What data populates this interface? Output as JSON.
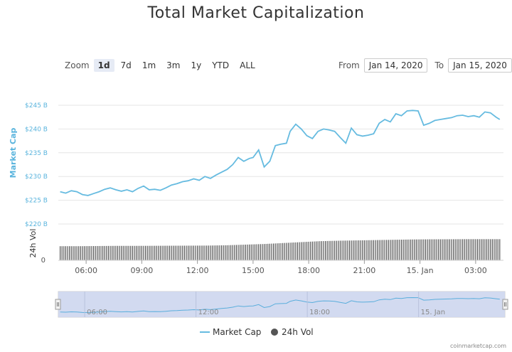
{
  "title": "Total Market Capitalization",
  "zoom": {
    "label": "Zoom",
    "options": [
      "1d",
      "7d",
      "1m",
      "3m",
      "1y",
      "YTD",
      "ALL"
    ],
    "selected": "1d"
  },
  "range": {
    "from_label": "From",
    "from_value": "Jan 14, 2020",
    "to_label": "To",
    "to_value": "Jan 15, 2020"
  },
  "credit": "coinmarketcap.com",
  "colors": {
    "line": "#66bbe0",
    "bar": "#555555",
    "navigator": "#cdd6ee"
  },
  "chart_data": {
    "type": "line",
    "title": "Total Market Capitalization",
    "x_unit": "hours since Jan 14, 2020 00:00",
    "xlim": [
      4.5,
      28.5
    ],
    "x_ticks": [
      {
        "x": 6,
        "label": "06:00"
      },
      {
        "x": 9,
        "label": "09:00"
      },
      {
        "x": 12,
        "label": "12:00"
      },
      {
        "x": 15,
        "label": "15:00"
      },
      {
        "x": 18,
        "label": "18:00"
      },
      {
        "x": 21,
        "label": "21:00"
      },
      {
        "x": 24,
        "label": "15. Jan"
      },
      {
        "x": 27,
        "label": "03:00"
      }
    ],
    "market_cap": {
      "name": "Market Cap",
      "ylabel": "Market Cap",
      "unit": "$ B",
      "ylim": [
        220,
        245
      ],
      "y_ticks": [
        "$220 B",
        "$225 B",
        "$230 B",
        "$235 B",
        "$240 B",
        "$245 B"
      ],
      "y_tick_values": [
        220,
        225,
        230,
        235,
        240,
        245
      ],
      "x": [
        4.6,
        4.9,
        5.2,
        5.5,
        5.8,
        6.1,
        6.4,
        6.7,
        7.0,
        7.3,
        7.6,
        7.9,
        8.2,
        8.5,
        8.8,
        9.1,
        9.4,
        9.7,
        10.0,
        10.3,
        10.6,
        10.9,
        11.2,
        11.5,
        11.8,
        12.1,
        12.4,
        12.7,
        13.0,
        13.3,
        13.6,
        13.9,
        14.2,
        14.5,
        14.8,
        15.0,
        15.3,
        15.6,
        15.9,
        16.2,
        16.5,
        16.8,
        17.0,
        17.3,
        17.6,
        17.9,
        18.2,
        18.5,
        18.8,
        19.1,
        19.4,
        19.7,
        20.0,
        20.3,
        20.6,
        20.9,
        21.2,
        21.5,
        21.8,
        22.1,
        22.4,
        22.7,
        23.0,
        23.3,
        23.6,
        23.9,
        24.2,
        24.5,
        24.8,
        25.1,
        25.4,
        25.7,
        26.0,
        26.3,
        26.6,
        26.9,
        27.2,
        27.5,
        27.8,
        28.1,
        28.3
      ],
      "values": [
        226.8,
        226.5,
        227.0,
        226.8,
        226.2,
        226.0,
        226.4,
        226.8,
        227.3,
        227.6,
        227.2,
        226.9,
        227.2,
        226.8,
        227.5,
        228.0,
        227.2,
        227.3,
        227.1,
        227.6,
        228.2,
        228.5,
        228.9,
        229.1,
        229.5,
        229.2,
        230.0,
        229.6,
        230.3,
        230.9,
        231.5,
        232.5,
        234.0,
        233.2,
        233.8,
        234.0,
        235.6,
        232.0,
        233.2,
        236.5,
        236.8,
        237.0,
        239.5,
        241.0,
        240.0,
        238.6,
        238.0,
        239.5,
        240.0,
        239.8,
        239.5,
        238.2,
        237.0,
        240.2,
        238.8,
        238.5,
        238.7,
        239.0,
        241.2,
        242.0,
        241.5,
        243.2,
        242.8,
        243.8,
        243.9,
        243.8,
        240.8,
        241.2,
        241.8,
        242.0,
        242.2,
        242.4,
        242.8,
        242.9,
        242.6,
        242.8,
        242.5,
        243.6,
        243.4,
        242.5,
        242.0
      ]
    },
    "volume": {
      "name": "24h Vol",
      "ylabel": "24h Vol",
      "y_ticks": [
        "0"
      ],
      "unit": "relative (0-100 scale)",
      "x": [
        4.6,
        5.6,
        6.6,
        7.6,
        8.6,
        9.6,
        10.6,
        11.6,
        12.6,
        13.6,
        14.6,
        15.6,
        16.6,
        17.6,
        18.6,
        19.6,
        20.6,
        21.6,
        22.6,
        23.6,
        24.6,
        25.6,
        26.6,
        27.6,
        28.3
      ],
      "values": [
        45,
        45,
        45.5,
        46,
        46,
        46.2,
        46.5,
        46.7,
        47,
        48,
        50,
        52,
        55,
        58,
        61,
        62.5,
        63.5,
        64.5,
        65.5,
        66.5,
        67,
        67.2,
        67.5,
        67.5,
        67.5
      ]
    }
  }
}
